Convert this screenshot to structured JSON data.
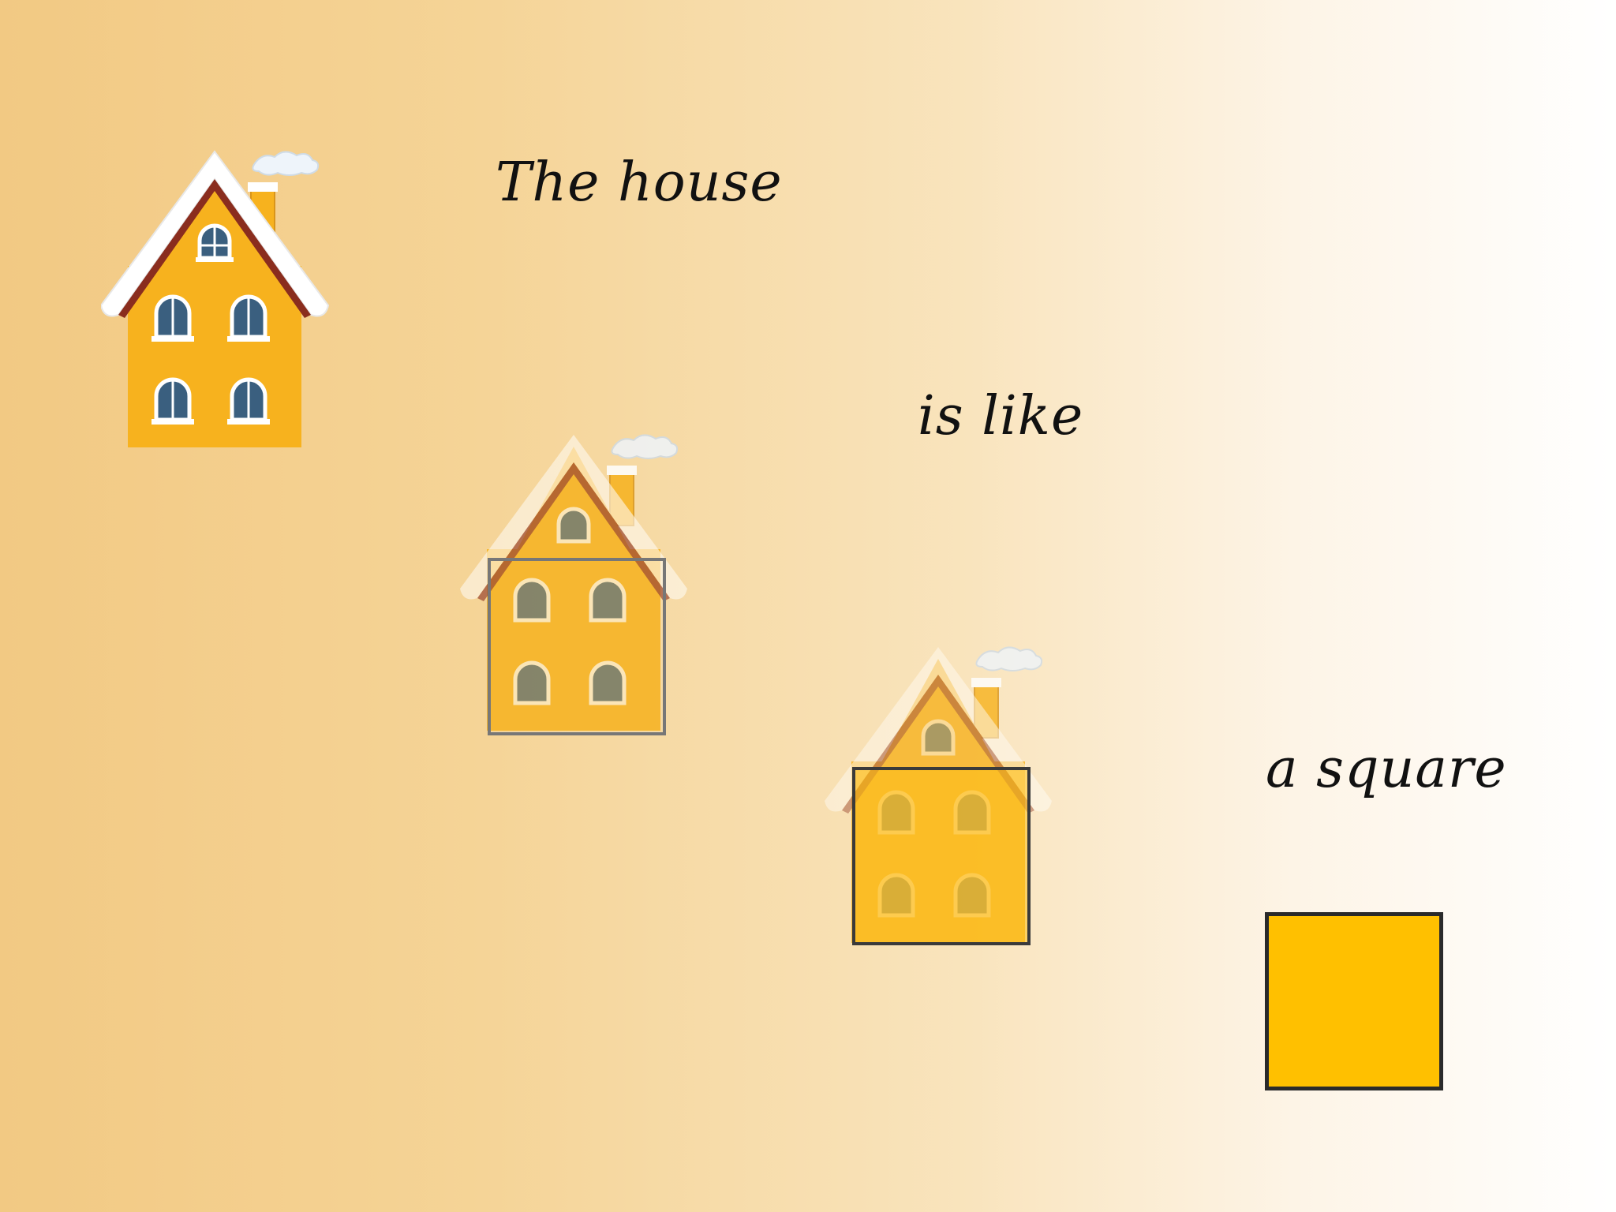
{
  "captions": {
    "line1": "The house",
    "line2": "is like",
    "line3": "a square"
  },
  "colors": {
    "house_wall": "#f7b21e",
    "roof_trim": "#8a2d1e",
    "snow": "#ffffff",
    "window_glass": "#3a5f7f",
    "square_fill": "#ffc000",
    "square_border": "#2a2a2a"
  },
  "icons": {
    "house": "house-icon",
    "square": "square-shape"
  }
}
